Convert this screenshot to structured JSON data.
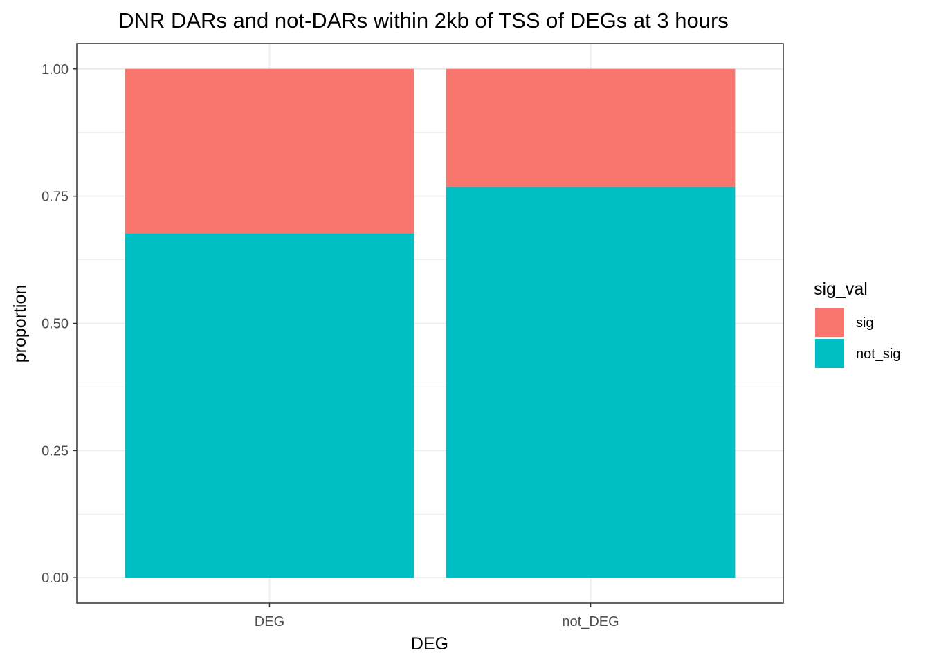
{
  "chart_data": {
    "type": "bar",
    "stacked": true,
    "title": "DNR DARs and not-DARs within 2kb of TSS of DEGs at 3 hours",
    "xlabel": "DEG",
    "ylabel": "proportion",
    "categories": [
      "DEG",
      "not_DEG"
    ],
    "series": [
      {
        "name": "not_sig",
        "values": [
          0.677,
          0.768
        ],
        "color": "#00BFC4"
      },
      {
        "name": "sig",
        "values": [
          0.323,
          0.232
        ],
        "color": "#F8766D"
      }
    ],
    "ylim": [
      -0.05,
      1.05
    ],
    "yticks": [
      0.0,
      0.25,
      0.5,
      0.75,
      1.0
    ],
    "ytick_labels": [
      "0.00",
      "0.25",
      "0.50",
      "0.75",
      "1.00"
    ],
    "grid": true,
    "legend": {
      "title": "sig_val",
      "placement": "right",
      "entries": [
        {
          "label": "sig",
          "color": "#F8766D"
        },
        {
          "label": "not_sig",
          "color": "#00BFC4"
        }
      ]
    }
  }
}
